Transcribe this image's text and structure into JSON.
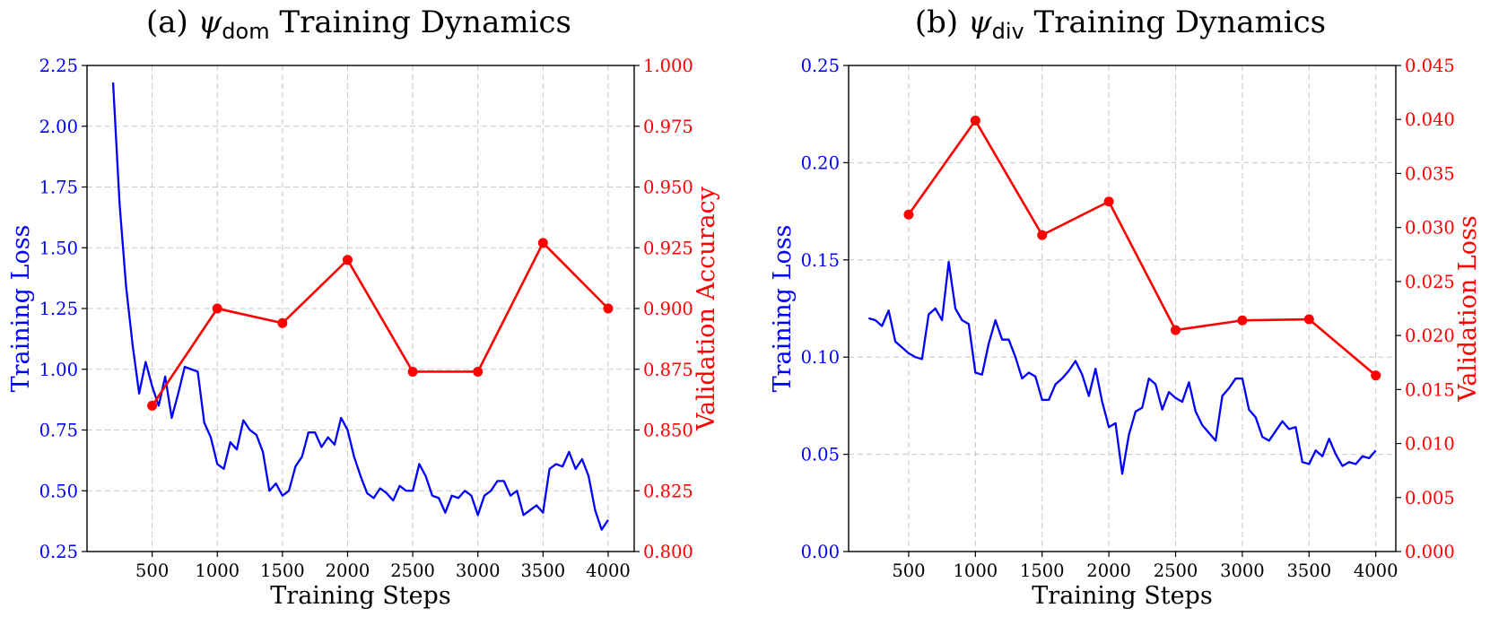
{
  "colors": {
    "train": "#0000ff",
    "val": "#ff0000",
    "axis": "#000000",
    "grid": "#c8c8c8"
  },
  "chart_data": [
    {
      "type": "line",
      "title": {
        "prefix": "(a) ",
        "symbol": "ψ",
        "subscript": "dom",
        "suffix": " Training Dynamics"
      },
      "xlabel": "Training Steps",
      "ylabel": "Training Loss",
      "y2label": "Validation Accuracy",
      "xlim": [
        0,
        4200
      ],
      "ylim": [
        0.25,
        2.25
      ],
      "y2lim": [
        0.8,
        1.0
      ],
      "xticks": [
        500,
        1000,
        1500,
        2000,
        2500,
        3000,
        3500,
        4000
      ],
      "yticks": [
        "0.25",
        "0.50",
        "0.75",
        "1.00",
        "1.25",
        "1.50",
        "1.75",
        "2.00",
        "2.25"
      ],
      "y2ticks": [
        "0.800",
        "0.825",
        "0.850",
        "0.875",
        "0.900",
        "0.925",
        "0.950",
        "0.975",
        "1.000"
      ],
      "grid": true,
      "series": [
        {
          "name": "Training Loss",
          "axis": "left",
          "color": "#0000ff",
          "markers": false,
          "x": [
            200,
            250,
            300,
            350,
            400,
            450,
            500,
            550,
            600,
            650,
            700,
            750,
            800,
            850,
            900,
            950,
            1000,
            1050,
            1100,
            1150,
            1200,
            1250,
            1300,
            1350,
            1400,
            1450,
            1500,
            1550,
            1600,
            1650,
            1700,
            1750,
            1800,
            1850,
            1900,
            1950,
            2000,
            2050,
            2100,
            2150,
            2200,
            2250,
            2300,
            2350,
            2400,
            2450,
            2500,
            2550,
            2600,
            2650,
            2700,
            2750,
            2800,
            2850,
            2900,
            2950,
            3000,
            3050,
            3100,
            3150,
            3200,
            3250,
            3300,
            3350,
            3400,
            3450,
            3500,
            3550,
            3600,
            3650,
            3700,
            3750,
            3800,
            3850,
            3900,
            3950,
            4000
          ],
          "y": [
            2.18,
            1.68,
            1.34,
            1.1,
            0.9,
            1.03,
            0.93,
            0.85,
            0.97,
            0.8,
            0.9,
            1.01,
            1.0,
            0.99,
            0.78,
            0.72,
            0.61,
            0.59,
            0.7,
            0.67,
            0.79,
            0.75,
            0.73,
            0.66,
            0.5,
            0.53,
            0.48,
            0.5,
            0.6,
            0.64,
            0.74,
            0.74,
            0.68,
            0.72,
            0.69,
            0.8,
            0.75,
            0.64,
            0.56,
            0.49,
            0.47,
            0.51,
            0.49,
            0.46,
            0.52,
            0.5,
            0.5,
            0.61,
            0.56,
            0.48,
            0.47,
            0.41,
            0.48,
            0.47,
            0.5,
            0.48,
            0.4,
            0.48,
            0.5,
            0.54,
            0.54,
            0.48,
            0.5,
            0.4,
            0.42,
            0.44,
            0.41,
            0.59,
            0.61,
            0.6,
            0.66,
            0.59,
            0.63,
            0.56,
            0.42,
            0.34,
            0.38
          ]
        },
        {
          "name": "Validation Accuracy",
          "axis": "right",
          "color": "#ff0000",
          "markers": true,
          "x": [
            500,
            1000,
            1500,
            2000,
            2500,
            3000,
            3500,
            4000
          ],
          "y": [
            0.86,
            0.9,
            0.894,
            0.92,
            0.874,
            0.874,
            0.927,
            0.9
          ]
        }
      ]
    },
    {
      "type": "line",
      "title": {
        "prefix": "(b) ",
        "symbol": "ψ",
        "subscript": "div",
        "suffix": " Training Dynamics"
      },
      "xlabel": "Training Steps",
      "ylabel": "Training Loss",
      "y2label": "Validation Loss",
      "xlim": [
        50,
        4150
      ],
      "ylim": [
        0.0,
        0.25
      ],
      "y2lim": [
        0.0,
        0.045
      ],
      "xticks": [
        500,
        1000,
        1500,
        2000,
        2500,
        3000,
        3500,
        4000
      ],
      "yticks": [
        "0.00",
        "0.05",
        "0.10",
        "0.15",
        "0.20",
        "0.25"
      ],
      "y2ticks": [
        "0.000",
        "0.005",
        "0.010",
        "0.015",
        "0.020",
        "0.025",
        "0.030",
        "0.035",
        "0.040",
        "0.045"
      ],
      "grid": true,
      "series": [
        {
          "name": "Training Loss",
          "axis": "left",
          "color": "#0000ff",
          "markers": false,
          "x": [
            200,
            250,
            300,
            350,
            400,
            450,
            500,
            550,
            600,
            650,
            700,
            750,
            800,
            850,
            900,
            950,
            1000,
            1050,
            1100,
            1150,
            1200,
            1250,
            1300,
            1350,
            1400,
            1450,
            1500,
            1550,
            1600,
            1650,
            1700,
            1750,
            1800,
            1850,
            1900,
            1950,
            2000,
            2050,
            2100,
            2150,
            2200,
            2250,
            2300,
            2350,
            2400,
            2450,
            2500,
            2550,
            2600,
            2650,
            2700,
            2750,
            2800,
            2850,
            2900,
            2950,
            3000,
            3050,
            3100,
            3150,
            3200,
            3250,
            3300,
            3350,
            3400,
            3450,
            3500,
            3550,
            3600,
            3650,
            3700,
            3750,
            3800,
            3850,
            3900,
            3950,
            4000
          ],
          "y": [
            0.12,
            0.119,
            0.116,
            0.124,
            0.108,
            0.105,
            0.102,
            0.1,
            0.099,
            0.122,
            0.125,
            0.119,
            0.149,
            0.125,
            0.119,
            0.117,
            0.092,
            0.091,
            0.107,
            0.119,
            0.109,
            0.109,
            0.1,
            0.089,
            0.092,
            0.09,
            0.078,
            0.078,
            0.086,
            0.089,
            0.093,
            0.098,
            0.091,
            0.08,
            0.094,
            0.077,
            0.064,
            0.066,
            0.04,
            0.06,
            0.072,
            0.074,
            0.089,
            0.086,
            0.073,
            0.082,
            0.079,
            0.077,
            0.087,
            0.072,
            0.065,
            0.061,
            0.057,
            0.08,
            0.084,
            0.089,
            0.089,
            0.073,
            0.069,
            0.059,
            0.057,
            0.062,
            0.067,
            0.063,
            0.064,
            0.046,
            0.045,
            0.052,
            0.049,
            0.058,
            0.05,
            0.044,
            0.046,
            0.045,
            0.049,
            0.048,
            0.052
          ]
        },
        {
          "name": "Validation Loss",
          "axis": "right",
          "color": "#ff0000",
          "markers": true,
          "x": [
            500,
            1000,
            1500,
            2000,
            2500,
            3000,
            3500,
            4000
          ],
          "y": [
            0.0312,
            0.0399,
            0.0293,
            0.0324,
            0.0205,
            0.0214,
            0.0215,
            0.0163
          ]
        }
      ]
    }
  ]
}
